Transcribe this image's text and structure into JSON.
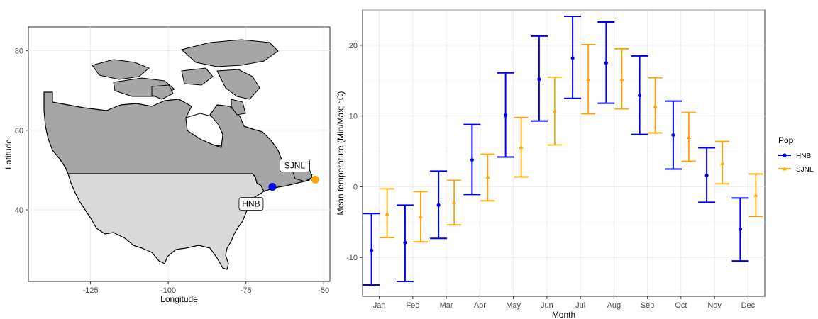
{
  "colors": {
    "hnb": "#0000EE",
    "sjnl": "#FFA500",
    "canada_fill": "#A6A6A6",
    "usa_fill": "#D9D9D9",
    "grid": "#EBEBEB"
  },
  "chart_data": [
    {
      "type": "scatter",
      "title": "",
      "xlabel": "Longitude",
      "ylabel": "Latitude",
      "xlim": [
        -145,
        -48
      ],
      "ylim": [
        22,
        86
      ],
      "xticks": [
        -125,
        -100,
        -75,
        -50
      ],
      "yticks": [
        40,
        60,
        80
      ],
      "basemap": [
        "Canada",
        "USA"
      ],
      "points": [
        {
          "label": "HNB",
          "x": -66.5,
          "y": 45.8,
          "color": "#0000EE"
        },
        {
          "label": "SJNL",
          "x": -52.7,
          "y": 47.6,
          "color": "#FFA500"
        }
      ],
      "grid": true
    },
    {
      "type": "errorbar",
      "title": "",
      "xlabel": "Month",
      "ylabel": "Mean temperature (Min/Max; °C)",
      "ylim": [
        -15.5,
        25
      ],
      "yticks": [
        -10,
        0,
        10,
        20
      ],
      "categories": [
        "Jan",
        "Feb",
        "Mar",
        "Apr",
        "May",
        "Jun",
        "Jul",
        "Aug",
        "Sep",
        "Oct",
        "Nov",
        "Dec"
      ],
      "legend_title": "Pop",
      "legend_position": "right",
      "grid": true,
      "series": [
        {
          "name": "HNB",
          "color": "#0000EE",
          "marker": "circle",
          "mean": [
            -9.0,
            -7.9,
            -2.6,
            3.8,
            10.1,
            15.2,
            18.2,
            17.5,
            12.9,
            7.3,
            1.6,
            -6.0
          ],
          "min": [
            -13.9,
            -13.4,
            -7.3,
            -1.1,
            4.2,
            9.3,
            12.5,
            11.8,
            7.4,
            2.5,
            -2.2,
            -10.5
          ],
          "max": [
            -3.8,
            -2.6,
            2.2,
            8.8,
            16.1,
            21.3,
            24.1,
            23.3,
            18.5,
            12.1,
            5.5,
            -1.6
          ]
        },
        {
          "name": "SJNL",
          "color": "#FFA500",
          "marker": "triangle",
          "mean": [
            -3.8,
            -4.2,
            -2.2,
            1.4,
            5.6,
            10.7,
            15.2,
            15.2,
            11.4,
            7.0,
            3.3,
            -1.2
          ],
          "min": [
            -7.2,
            -7.8,
            -5.4,
            -2.0,
            1.4,
            5.9,
            10.3,
            11.0,
            7.6,
            3.6,
            0.4,
            -4.2
          ],
          "max": [
            -0.3,
            -0.7,
            0.9,
            4.6,
            9.8,
            15.5,
            20.1,
            19.5,
            15.4,
            10.5,
            6.4,
            1.8
          ]
        }
      ]
    }
  ]
}
